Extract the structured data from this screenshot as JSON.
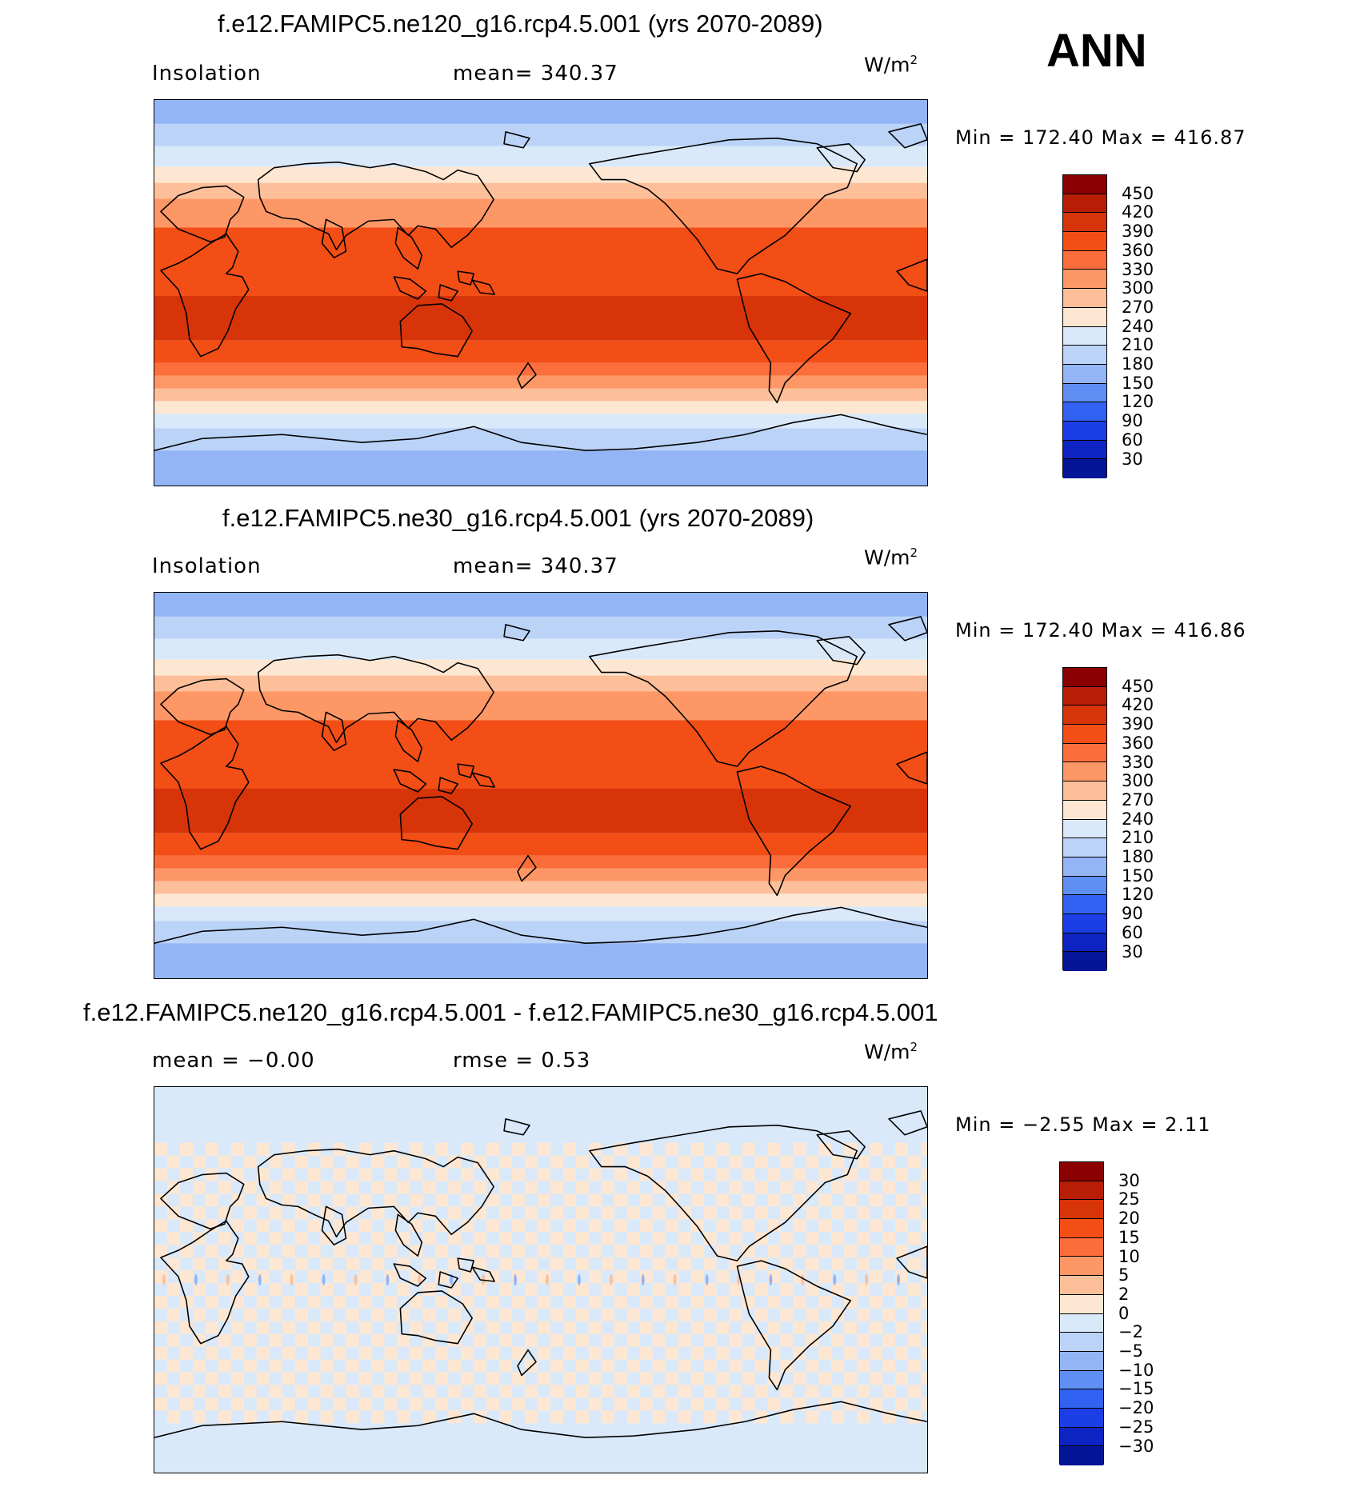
{
  "season": "ANN",
  "units": "W/m",
  "units_exp": "2",
  "panels": [
    {
      "title": "f.e12.FAMIPC5.ne120_g16.rcp4.5.001 (yrs 2070-2089)",
      "left_label": "Insolation",
      "center_label": "mean=  340.37",
      "minmax": "Min  =  172.40  Max  =  416.87"
    },
    {
      "title": "f.e12.FAMIPC5.ne30_g16.rcp4.5.001 (yrs 2070-2089)",
      "left_label": "Insolation",
      "center_label": "mean=  340.37",
      "minmax": "Min  =  172.40  Max  =  416.86"
    },
    {
      "title": "f.e12.FAMIPC5.ne120_g16.rcp4.5.001 - f.e12.FAMIPC5.ne30_g16.rcp4.5.001",
      "left_label": "mean  =    −0.00",
      "center_label": "rmse  =      0.53",
      "minmax": "Min  =    −2.55  Max  =      2.11"
    }
  ],
  "colorbar_main": {
    "colors": [
      "#8b0000",
      "#b81d05",
      "#d7340a",
      "#f24e15",
      "#fb6d3a",
      "#fe9766",
      "#fdbf99",
      "#fee7d2",
      "#d9e9f9",
      "#bcd3f8",
      "#93b5f6",
      "#5f8ff4",
      "#3162f1",
      "#1c3ee6",
      "#0e24c2",
      "#041598"
    ],
    "labels": [
      "450",
      "420",
      "390",
      "360",
      "330",
      "300",
      "270",
      "240",
      "210",
      "180",
      "150",
      "120",
      "90",
      "60",
      "30"
    ]
  },
  "colorbar_diff": {
    "colors": [
      "#8b0000",
      "#b81d05",
      "#d7340a",
      "#f24e15",
      "#fb6d3a",
      "#fe9766",
      "#fdbf99",
      "#fee7d2",
      "#d9e9f9",
      "#bcd3f8",
      "#93b5f6",
      "#5f8ff4",
      "#3162f1",
      "#1c3ee6",
      "#0e24c2",
      "#041598"
    ],
    "labels": [
      "30",
      "25",
      "20",
      "15",
      "10",
      "5",
      "2",
      "0",
      "−2",
      "−5",
      "−10",
      "−15",
      "−20",
      "−25",
      "−30"
    ]
  },
  "map_data": {
    "type": "filled-contour-map",
    "variable": "Insolation",
    "projection": "cylindrical-equidistant",
    "center_longitude": 180,
    "coastlines": true
  }
}
